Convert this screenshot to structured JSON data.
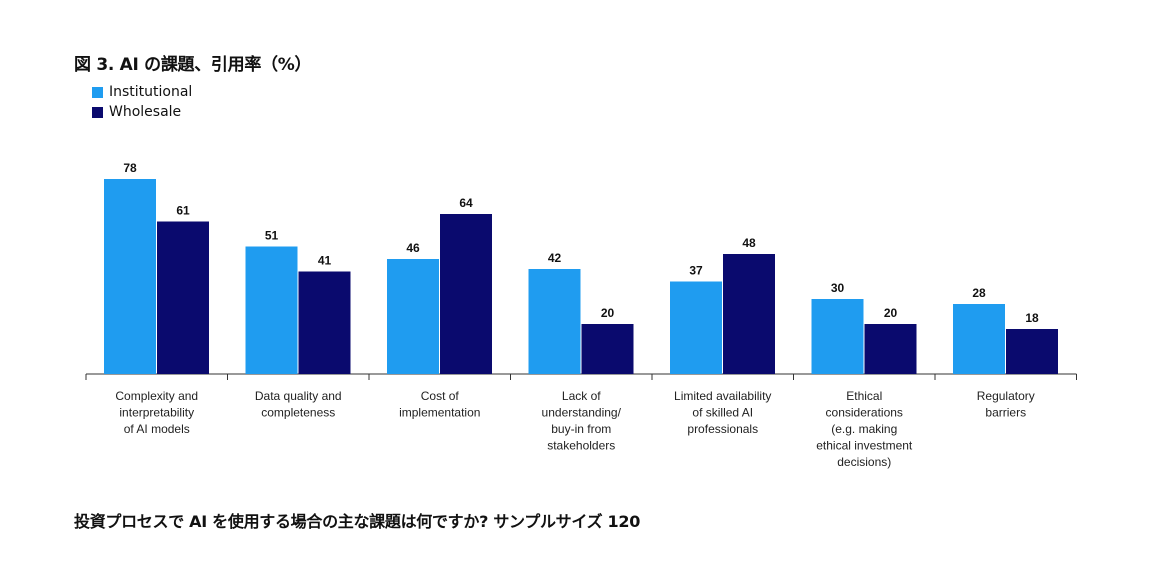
{
  "title": "図 3. AI の課題、引用率（%）",
  "footer": "投資プロセスで AI を使用する場合の主な課題は何ですか? サンプルサイズ 120",
  "colors": {
    "institutional": "#1f9cf0",
    "wholesale": "#0a0a6e"
  },
  "chart_data": {
    "type": "bar",
    "title": "図 3. AI の課題、引用率（%）",
    "xlabel": "",
    "ylabel": "",
    "ylim": [
      0,
      100
    ],
    "grid": false,
    "legend_position": "top-left",
    "categories": [
      [
        "Complexity and",
        "interpretability",
        "of AI models"
      ],
      [
        "Data quality and",
        "completeness"
      ],
      [
        "Cost of",
        "implementation"
      ],
      [
        "Lack of",
        "understanding/",
        "buy-in from",
        "stakeholders"
      ],
      [
        "Limited availability",
        "of skilled AI",
        "professionals"
      ],
      [
        "Ethical",
        "considerations",
        "(e.g. making",
        "ethical investment",
        "decisions)"
      ],
      [
        "Regulatory",
        "barriers"
      ]
    ],
    "series": [
      {
        "name": "Institutional",
        "values": [
          78,
          51,
          46,
          42,
          37,
          30,
          28
        ]
      },
      {
        "name": "Wholesale",
        "values": [
          61,
          41,
          64,
          20,
          48,
          20,
          18
        ]
      }
    ]
  }
}
